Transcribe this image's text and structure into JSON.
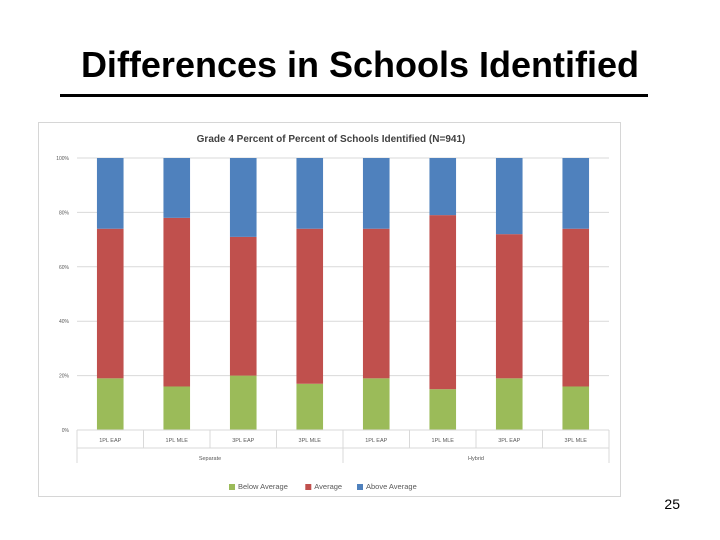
{
  "slide": {
    "title": "Differences in Schools Identified",
    "page_number": "25"
  },
  "chart_data": {
    "type": "bar",
    "stacked": true,
    "title": "Grade 4 Percent of Percent of Schools Identified (N=941)",
    "categories": [
      "1PL EAP",
      "1PL MLE",
      "3PL EAP",
      "3PL MLE",
      "1PL EAP",
      "1PL MLE",
      "3PL EAP",
      "3PL MLE"
    ],
    "groups": [
      {
        "label": "Separate",
        "start": 0,
        "end": 3
      },
      {
        "label": "Hybrid",
        "start": 4,
        "end": 7
      }
    ],
    "series": [
      {
        "name": "Below Average",
        "color": "#9bbb59",
        "values": [
          19,
          16,
          20,
          17,
          19,
          15,
          19,
          16
        ]
      },
      {
        "name": "Average",
        "color": "#c0504d",
        "values": [
          55,
          62,
          51,
          57,
          55,
          64,
          53,
          58
        ]
      },
      {
        "name": "Above Average",
        "color": "#4f81bd",
        "values": [
          26,
          22,
          29,
          26,
          26,
          21,
          28,
          26
        ]
      }
    ],
    "ylim": [
      0,
      100
    ],
    "yticks": [
      "0%",
      "20%",
      "40%",
      "60%",
      "80%",
      "100%"
    ],
    "grid": true,
    "legend_position": "bottom"
  }
}
